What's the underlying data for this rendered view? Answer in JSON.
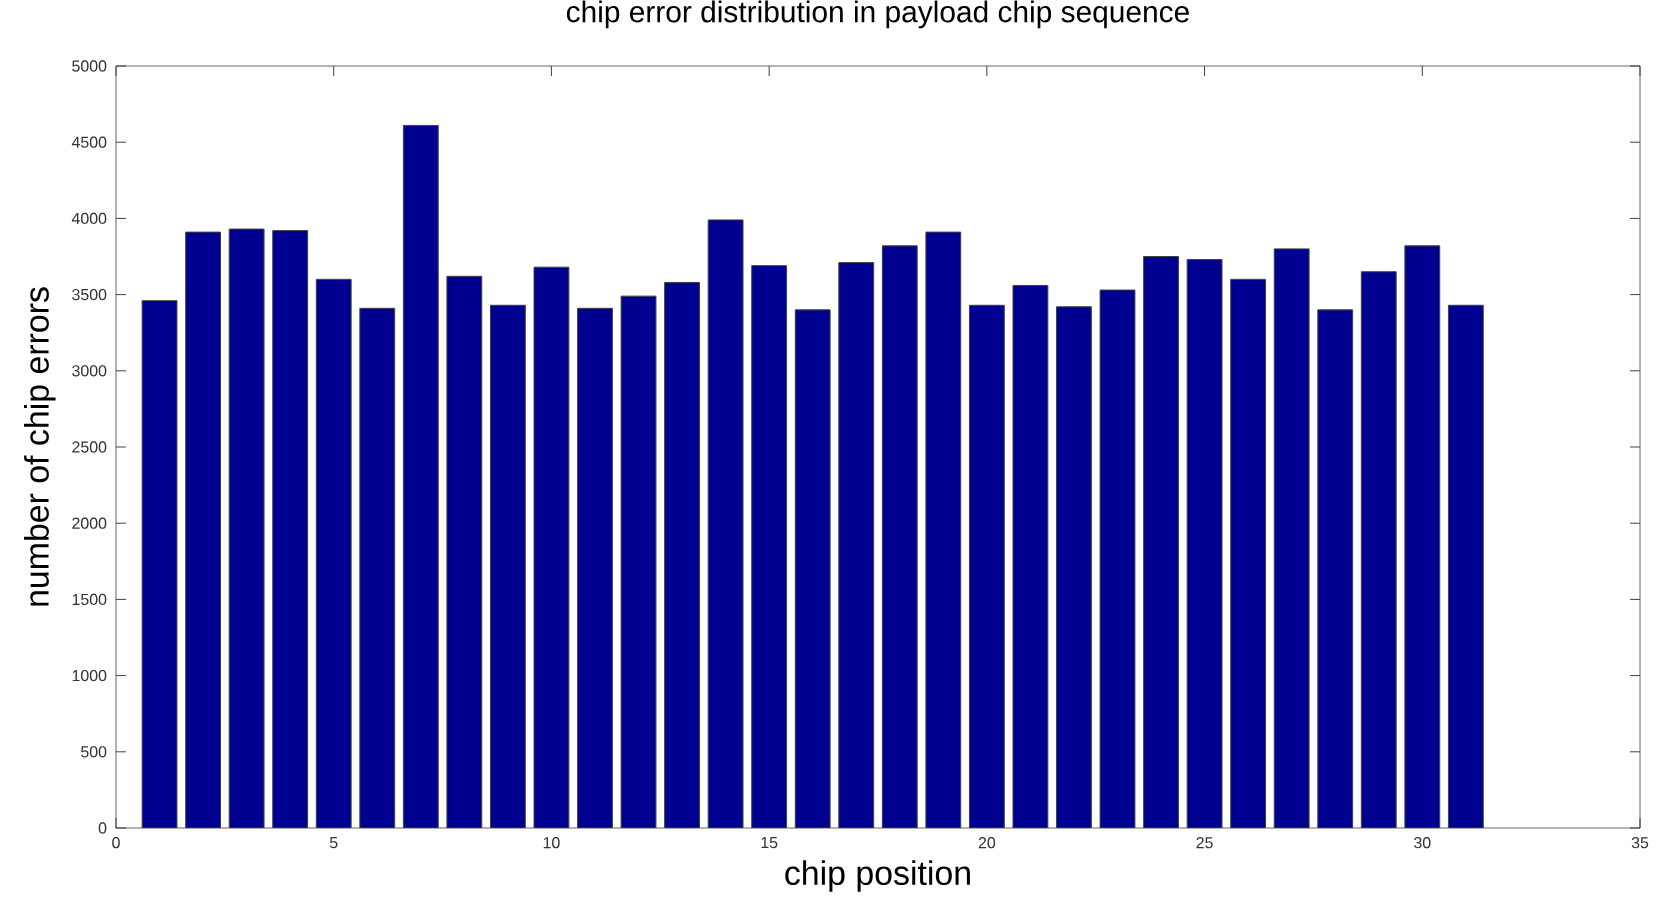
{
  "chart_data": {
    "type": "bar",
    "title": "chip error distribution in payload chip sequence",
    "xlabel": "chip position",
    "ylabel": "number of chip errors",
    "x": [
      1,
      2,
      3,
      4,
      5,
      6,
      7,
      8,
      9,
      10,
      11,
      12,
      13,
      14,
      15,
      16,
      17,
      18,
      19,
      20,
      21,
      22,
      23,
      24,
      25,
      26,
      27,
      28,
      29,
      30,
      31
    ],
    "values": [
      3460,
      3910,
      3930,
      3920,
      3600,
      3410,
      4610,
      3620,
      3430,
      3680,
      3410,
      3490,
      3580,
      3990,
      3690,
      3400,
      3710,
      3820,
      3910,
      3430,
      3560,
      3420,
      3530,
      3750,
      3730,
      3600,
      3800,
      3400,
      3650,
      3820,
      3430
    ],
    "color": "#000090",
    "xlim": [
      0,
      35
    ],
    "ylim": [
      0,
      5000
    ],
    "xticks": [
      0,
      5,
      10,
      15,
      20,
      25,
      30,
      35
    ],
    "yticks": [
      0,
      500,
      1000,
      1500,
      2000,
      2500,
      3000,
      3500,
      4000,
      4500,
      5000
    ]
  }
}
